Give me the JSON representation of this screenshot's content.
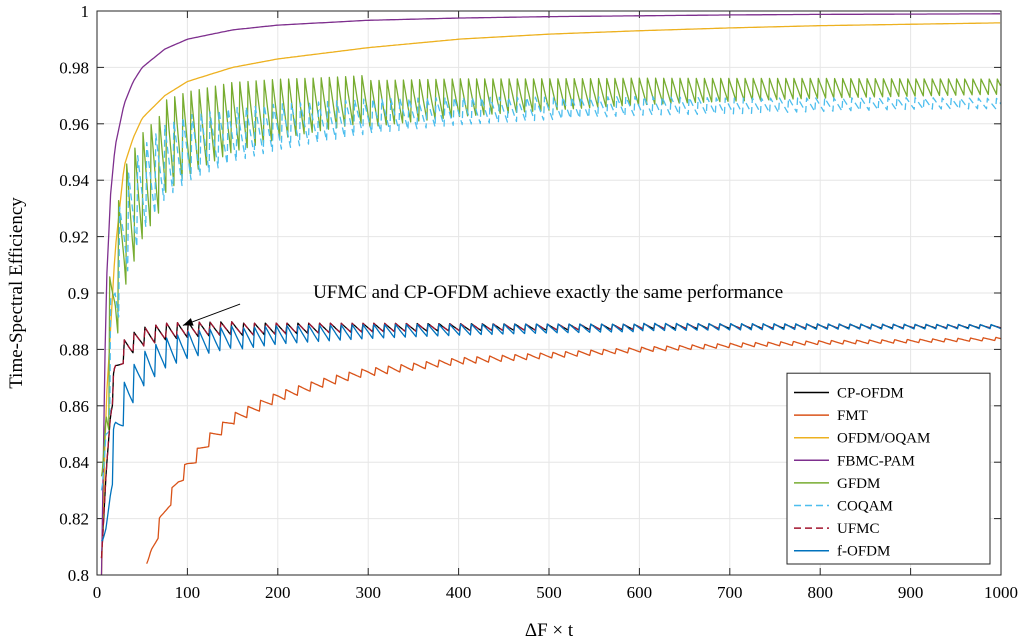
{
  "chart_data": {
    "type": "line",
    "title": "",
    "xlabel": "ΔF × t",
    "ylabel": "Time-Spectral Efficiency",
    "xlim": [
      0,
      1000
    ],
    "ylim": [
      0.8,
      1.0
    ],
    "xticks": [
      "0",
      "100",
      "200",
      "300",
      "400",
      "500",
      "600",
      "700",
      "800",
      "900",
      "1000"
    ],
    "yticks": [
      "0.8",
      "0.82",
      "0.84",
      "0.86",
      "0.88",
      "0.9",
      "0.92",
      "0.94",
      "0.96",
      "0.98",
      "1"
    ],
    "grid": true,
    "legend_position": "bottom-right",
    "annotation": {
      "text": "UFMC and CP-OFDM achieve exactly the same performance",
      "arrow_to": [
        95,
        0.8885
      ],
      "text_at": [
        145,
        0.8975
      ]
    },
    "series": [
      {
        "name": "CP-OFDM",
        "color": "#000000",
        "dash": "solid",
        "x": [
          5,
          10,
          15,
          20,
          30,
          50,
          75,
          100,
          150,
          200,
          300,
          400,
          500,
          600,
          700,
          800,
          900,
          1000
        ],
        "y": [
          0.8,
          0.835,
          0.86,
          0.872,
          0.88,
          0.884,
          0.886,
          0.8867,
          0.8873,
          0.8876,
          0.8879,
          0.888,
          0.888,
          0.8881,
          0.8881,
          0.8881,
          0.8881,
          0.8881
        ],
        "oscillation": {
          "period": 12,
          "amplitude_start": 0.006,
          "amplitude_end": 0.0006
        }
      },
      {
        "name": "FMT",
        "color": "#d95319",
        "dash": "solid",
        "x": [
          55,
          60,
          70,
          80,
          90,
          100,
          125,
          150,
          200,
          250,
          300,
          400,
          500,
          600,
          700,
          800,
          900,
          1000
        ],
        "y": [
          0.8,
          0.808,
          0.818,
          0.826,
          0.833,
          0.838,
          0.848,
          0.855,
          0.863,
          0.868,
          0.872,
          0.876,
          0.878,
          0.88,
          0.8815,
          0.8825,
          0.883,
          0.8838
        ],
        "oscillation": {
          "period": 14,
          "amplitude_start": 0.004,
          "amplitude_end": 0.0006
        }
      },
      {
        "name": "OFDM/OQAM",
        "color": "#edb120",
        "dash": "solid",
        "x": [
          5,
          10,
          20,
          30,
          40,
          50,
          75,
          100,
          150,
          200,
          300,
          400,
          500,
          600,
          700,
          800,
          900,
          1000
        ],
        "y": [
          0.8,
          0.86,
          0.915,
          0.945,
          0.955,
          0.962,
          0.97,
          0.975,
          0.98,
          0.983,
          0.987,
          0.99,
          0.9918,
          0.993,
          0.994,
          0.9948,
          0.9953,
          0.9958
        ]
      },
      {
        "name": "FBMC-PAM",
        "color": "#7e2f8e",
        "dash": "solid",
        "x": [
          5,
          10,
          15,
          20,
          30,
          40,
          50,
          75,
          100,
          150,
          200,
          300,
          400,
          500,
          600,
          700,
          800,
          900,
          1000
        ],
        "y": [
          0.8,
          0.9,
          0.935,
          0.952,
          0.967,
          0.975,
          0.98,
          0.9865,
          0.99,
          0.9933,
          0.995,
          0.9967,
          0.9975,
          0.998,
          0.9983,
          0.9986,
          0.9988,
          0.9989,
          0.999
        ]
      },
      {
        "name": "GFDM",
        "color": "#77ac30",
        "dash": "solid",
        "x": [
          5,
          10,
          20,
          30,
          50,
          75,
          100,
          150,
          200,
          300,
          400,
          500,
          600,
          700,
          800,
          900,
          1000
        ],
        "y": [
          0.8,
          0.86,
          0.905,
          0.925,
          0.94,
          0.95,
          0.955,
          0.961,
          0.964,
          0.968,
          0.97,
          0.971,
          0.972,
          0.9725,
          0.973,
          0.9732,
          0.9735
        ],
        "oscillation": {
          "period": 9,
          "amplitude_start": 0.035,
          "amplitude_end": 0.003
        }
      },
      {
        "name": "COQAM",
        "color": "#4dbeee",
        "dash": "dashed",
        "x": [
          5,
          10,
          20,
          30,
          50,
          75,
          100,
          150,
          200,
          300,
          400,
          500,
          600,
          700,
          800,
          900,
          1000
        ],
        "y": [
          0.8,
          0.85,
          0.9,
          0.92,
          0.935,
          0.945,
          0.95,
          0.955,
          0.958,
          0.962,
          0.964,
          0.965,
          0.966,
          0.966,
          0.9665,
          0.967,
          0.967
        ],
        "oscillation": {
          "period": 10,
          "amplitude_start": 0.03,
          "amplitude_end": 0.002
        }
      },
      {
        "name": "UFMC",
        "color": "#a2142f",
        "dash": "dashed",
        "x": [
          5,
          10,
          15,
          20,
          30,
          50,
          75,
          100,
          150,
          200,
          300,
          400,
          500,
          600,
          700,
          800,
          900,
          1000
        ],
        "y": [
          0.8,
          0.835,
          0.86,
          0.872,
          0.88,
          0.884,
          0.886,
          0.8867,
          0.8873,
          0.8876,
          0.8879,
          0.888,
          0.888,
          0.8881,
          0.8881,
          0.8881,
          0.8881,
          0.8881
        ],
        "oscillation": {
          "period": 12,
          "amplitude_start": 0.006,
          "amplitude_end": 0.0006
        }
      },
      {
        "name": "f-OFDM",
        "color": "#0072bd",
        "dash": "solid",
        "x": [
          5,
          10,
          15,
          20,
          30,
          50,
          75,
          100,
          150,
          200,
          300,
          400,
          500,
          600,
          700,
          800,
          900,
          1000
        ],
        "y": [
          0.8,
          0.815,
          0.835,
          0.85,
          0.862,
          0.872,
          0.878,
          0.881,
          0.884,
          0.8855,
          0.8866,
          0.8872,
          0.8876,
          0.8878,
          0.8879,
          0.888,
          0.888,
          0.888
        ],
        "oscillation": {
          "period": 12,
          "amplitude_start": 0.012,
          "amplitude_end": 0.0008
        }
      }
    ]
  }
}
